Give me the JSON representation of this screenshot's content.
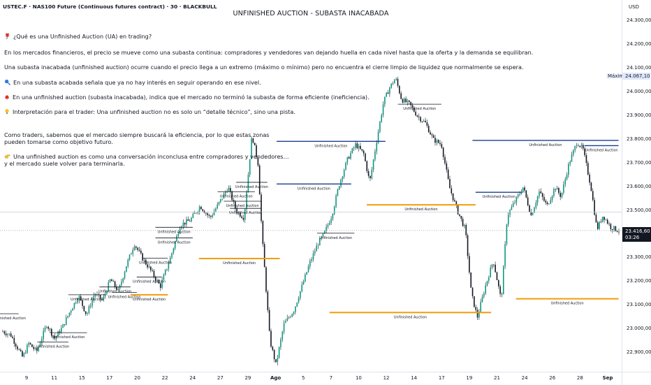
{
  "header": {
    "symbol": "USTEC.F · NAS100 Future (Continuous futures contract) · 30 · BLACKBULL",
    "title": "UNFINISHED AUCTION - SUBASTA INACABADA"
  },
  "notes": [
    {
      "icon": "pushpin-icon",
      "text": "¿Qué es una Unfinished Auction (UA) en trading?"
    },
    {
      "icon": "",
      "text": "En los mercados financieros, el precio se mueve como una subasta continua: compradores y vendedores van dejando huella en cada nivel hasta que la oferta y la demanda se equilibran."
    },
    {
      "icon": "",
      "text": "Una subasta inacabada (unfinished auction) ocurre cuando el precio llega a un extremo (máximo o mínimo) pero no encuentra el cierre limpio de liquidez que normalmente se espera."
    },
    {
      "icon": "magnifier-icon",
      "text": "En una subasta acabada señala que ya no hay interés en seguir operando en ese nivel."
    },
    {
      "icon": "bell-icon",
      "text": "En una unfinished auction (subasta inacabada), indica que el mercado no terminó la subasta de forma eficiente (ineficiencia)."
    },
    {
      "icon": "lightbulb-icon",
      "text": "Interpretación para el trader: Una unfinished auction no es solo un “detalle técnico”, sino una pista."
    },
    {
      "icon": "",
      "text": "Como traders, sabemos que el mercado siempre buscará la eficiencia, por lo que estas zonas"
    },
    {
      "icon": "",
      "text": "pueden tomarse como objetivo futuro."
    },
    {
      "icon": "pointing-hand-icon",
      "text": "Una unfinished auction es como una conversación inconclusa entre compradores y vendedores…"
    },
    {
      "icon": "",
      "text": "y el mercado suele volver para terminarla."
    }
  ],
  "colors": {
    "candle": "#089981",
    "wick": "#131722",
    "auction_blue": "#1a3e8f",
    "auction_orange": "#f29d0a",
    "auction_dark": "#131722",
    "max_label_bg": "#dfe7fb",
    "last_price_bg": "#131722"
  },
  "price_axis": {
    "currency": "USD",
    "max_label": "Máximo",
    "max_value": "24.067,10",
    "last_price": "23.416,60",
    "countdown": "03:26"
  },
  "chart_data": {
    "type": "candlestick",
    "title": "UNFINISHED AUCTION - SUBASTA INACABADA",
    "instrument": "USTEC.F · NAS100 Future (Continuous futures contract)",
    "timeframe": "30",
    "ylim": [
      22820,
      24390
    ],
    "y_ticks": [
      "24.300,00",
      "24.200,00",
      "24.100,00",
      "24.000,00",
      "23.900,00",
      "23.800,00",
      "23.700,00",
      "23.600,00",
      "23.500,00",
      "23.400,00",
      "23.300,00",
      "23.200,00",
      "23.100,00",
      "23.000,00",
      "22.900,00"
    ],
    "x_ticks": [
      {
        "label": "9",
        "bold": false
      },
      {
        "label": "11",
        "bold": false
      },
      {
        "label": "15",
        "bold": false
      },
      {
        "label": "17",
        "bold": false
      },
      {
        "label": "20",
        "bold": false
      },
      {
        "label": "22",
        "bold": false
      },
      {
        "label": "24",
        "bold": false
      },
      {
        "label": "27",
        "bold": false
      },
      {
        "label": "29",
        "bold": false
      },
      {
        "label": "Ago",
        "bold": true
      },
      {
        "label": "5",
        "bold": false
      },
      {
        "label": "7",
        "bold": false
      },
      {
        "label": "10",
        "bold": false
      },
      {
        "label": "12",
        "bold": false
      },
      {
        "label": "14",
        "bold": false
      },
      {
        "label": "17",
        "bold": false
      },
      {
        "label": "19",
        "bold": false
      },
      {
        "label": "21",
        "bold": false
      },
      {
        "label": "24",
        "bold": false
      },
      {
        "label": "26",
        "bold": false
      },
      {
        "label": "28",
        "bold": false
      },
      {
        "label": "Sep",
        "bold": true
      }
    ],
    "price_path": [
      {
        "t": 0.0,
        "p": 22990
      },
      {
        "t": 0.4,
        "p": 22975
      },
      {
        "t": 1.0,
        "p": 22880
      },
      {
        "t": 1.3,
        "p": 22940
      },
      {
        "t": 1.7,
        "p": 22905
      },
      {
        "t": 2.2,
        "p": 23020
      },
      {
        "t": 2.6,
        "p": 22960
      },
      {
        "t": 3.0,
        "p": 23010
      },
      {
        "t": 3.4,
        "p": 23080
      },
      {
        "t": 3.8,
        "p": 23140
      },
      {
        "t": 4.2,
        "p": 23060
      },
      {
        "t": 4.6,
        "p": 23150
      },
      {
        "t": 5.0,
        "p": 23120
      },
      {
        "t": 5.4,
        "p": 23210
      },
      {
        "t": 5.8,
        "p": 23160
      },
      {
        "t": 6.2,
        "p": 23270
      },
      {
        "t": 6.6,
        "p": 23360
      },
      {
        "t": 7.0,
        "p": 23300
      },
      {
        "t": 7.4,
        "p": 23250
      },
      {
        "t": 7.9,
        "p": 23180
      },
      {
        "t": 8.4,
        "p": 23300
      },
      {
        "t": 8.9,
        "p": 23440
      },
      {
        "t": 9.4,
        "p": 23460
      },
      {
        "t": 9.9,
        "p": 23520
      },
      {
        "t": 10.4,
        "p": 23470
      },
      {
        "t": 10.9,
        "p": 23540
      },
      {
        "t": 11.3,
        "p": 23600
      },
      {
        "t": 11.7,
        "p": 23500
      },
      {
        "t": 12.1,
        "p": 23470
      },
      {
        "t": 12.5,
        "p": 23820
      },
      {
        "t": 12.8,
        "p": 23700
      },
      {
        "t": 13.0,
        "p": 23400
      },
      {
        "t": 13.4,
        "p": 22950
      },
      {
        "t": 13.7,
        "p": 22850
      },
      {
        "t": 14.1,
        "p": 23020
      },
      {
        "t": 14.6,
        "p": 23080
      },
      {
        "t": 15.0,
        "p": 23180
      },
      {
        "t": 15.4,
        "p": 23280
      },
      {
        "t": 15.8,
        "p": 23360
      },
      {
        "t": 16.1,
        "p": 23400
      },
      {
        "t": 16.5,
        "p": 23480
      },
      {
        "t": 16.9,
        "p": 23620
      },
      {
        "t": 17.3,
        "p": 23720
      },
      {
        "t": 17.7,
        "p": 23780
      },
      {
        "t": 18.1,
        "p": 23740
      },
      {
        "t": 18.4,
        "p": 23620
      },
      {
        "t": 18.8,
        "p": 23820
      },
      {
        "t": 19.1,
        "p": 23960
      },
      {
        "t": 19.4,
        "p": 24020
      },
      {
        "t": 19.7,
        "p": 24060
      },
      {
        "t": 20.0,
        "p": 23970
      },
      {
        "t": 20.4,
        "p": 23950
      },
      {
        "t": 20.8,
        "p": 23900
      },
      {
        "t": 21.2,
        "p": 23870
      },
      {
        "t": 21.6,
        "p": 23800
      },
      {
        "t": 22.0,
        "p": 23780
      },
      {
        "t": 22.4,
        "p": 23600
      },
      {
        "t": 22.8,
        "p": 23500
      },
      {
        "t": 23.2,
        "p": 23420
      },
      {
        "t": 23.5,
        "p": 23150
      },
      {
        "t": 23.8,
        "p": 23050
      },
      {
        "t": 24.2,
        "p": 23180
      },
      {
        "t": 24.6,
        "p": 23290
      },
      {
        "t": 25.0,
        "p": 23120
      },
      {
        "t": 25.3,
        "p": 23480
      },
      {
        "t": 25.7,
        "p": 23540
      },
      {
        "t": 26.1,
        "p": 23600
      },
      {
        "t": 26.5,
        "p": 23480
      },
      {
        "t": 26.9,
        "p": 23580
      },
      {
        "t": 27.3,
        "p": 23520
      },
      {
        "t": 27.7,
        "p": 23600
      },
      {
        "t": 28.0,
        "p": 23560
      },
      {
        "t": 28.4,
        "p": 23700
      },
      {
        "t": 28.8,
        "p": 23790
      },
      {
        "t": 29.1,
        "p": 23760
      },
      {
        "t": 29.5,
        "p": 23600
      },
      {
        "t": 29.8,
        "p": 23420
      },
      {
        "t": 30.1,
        "p": 23480
      },
      {
        "t": 30.5,
        "p": 23430
      },
      {
        "t": 30.9,
        "p": 23416
      }
    ],
    "auction_levels": [
      {
        "label": "Unfinished Auction",
        "price": 23065,
        "x0": 0.0,
        "x1": 0.03,
        "style": "dark"
      },
      {
        "label": "Unfinished Auction",
        "price": 22945,
        "x0": 0.06,
        "x1": 0.11,
        "style": "dark"
      },
      {
        "label": "Unfinished Auction",
        "price": 22985,
        "x0": 0.08,
        "x1": 0.14,
        "style": "dark"
      },
      {
        "label": "Unfinished Auction",
        "price": 23145,
        "x0": 0.11,
        "x1": 0.17,
        "style": "dark"
      },
      {
        "label": "Unfinished Auction",
        "price": 23178,
        "x0": 0.16,
        "x1": 0.21,
        "style": "dark"
      },
      {
        "label": "Unfinished Auction",
        "price": 23155,
        "x0": 0.18,
        "x1": 0.22,
        "style": "dark"
      },
      {
        "label": "Unfinished Auction",
        "price": 23220,
        "x0": 0.22,
        "x1": 0.26,
        "style": "dark"
      },
      {
        "label": "Unfinished Auction",
        "price": 23145,
        "x0": 0.21,
        "x1": 0.27,
        "style": "orange"
      },
      {
        "label": "Unfinished Auction",
        "price": 23300,
        "x0": 0.23,
        "x1": 0.27,
        "style": "dark"
      },
      {
        "label": "Unfinished Auction",
        "price": 23430,
        "x0": 0.25,
        "x1": 0.31,
        "style": "dark"
      },
      {
        "label": "Unfinished Auction",
        "price": 23385,
        "x0": 0.25,
        "x1": 0.31,
        "style": "dark"
      },
      {
        "label": "Unfinished Auction",
        "price": 23298,
        "x0": 0.32,
        "x1": 0.45,
        "style": "orange"
      },
      {
        "label": "Unfinished Auction",
        "price": 23580,
        "x0": 0.35,
        "x1": 0.41,
        "style": "dark"
      },
      {
        "label": "Unfinished Auction",
        "price": 23540,
        "x0": 0.36,
        "x1": 0.42,
        "style": "dark"
      },
      {
        "label": "Unfinished Auction",
        "price": 23510,
        "x0": 0.37,
        "x1": 0.42,
        "style": "dark"
      },
      {
        "label": "Unfinished Auction",
        "price": 23620,
        "x0": 0.38,
        "x1": 0.43,
        "style": "dark"
      },
      {
        "label": "Unfinished Auction",
        "price": 23793,
        "x0": 0.445,
        "x1": 0.62,
        "style": "blue"
      },
      {
        "label": "Unfinished Auction",
        "price": 23613,
        "x0": 0.445,
        "x1": 0.565,
        "style": "blue"
      },
      {
        "label": "Unfinished Auction",
        "price": 23405,
        "x0": 0.51,
        "x1": 0.57,
        "style": "dark"
      },
      {
        "label": "Unfinished Auction",
        "price": 23525,
        "x0": 0.59,
        "x1": 0.765,
        "style": "orange"
      },
      {
        "label": "Unfinished Auction",
        "price": 23070,
        "x0": 0.53,
        "x1": 0.79,
        "style": "orange"
      },
      {
        "label": "Unfinished Auction",
        "price": 23950,
        "x0": 0.64,
        "x1": 0.71,
        "style": "dark"
      },
      {
        "label": "Unfinished Auction",
        "price": 23797,
        "x0": 0.76,
        "x1": 0.995,
        "style": "blue"
      },
      {
        "label": "Unfinished Auction",
        "price": 23578,
        "x0": 0.765,
        "x1": 0.84,
        "style": "blue"
      },
      {
        "label": "Unfinished Auction",
        "price": 23775,
        "x0": 0.94,
        "x1": 0.995,
        "style": "blue"
      },
      {
        "label": "Unfinished Auction",
        "price": 23128,
        "x0": 0.83,
        "x1": 0.995,
        "style": "orange"
      }
    ],
    "horizontal_refs": [
      {
        "price": 23494,
        "kind": "reference-line"
      },
      {
        "price": 23416.6,
        "kind": "last-price-line"
      }
    ]
  }
}
